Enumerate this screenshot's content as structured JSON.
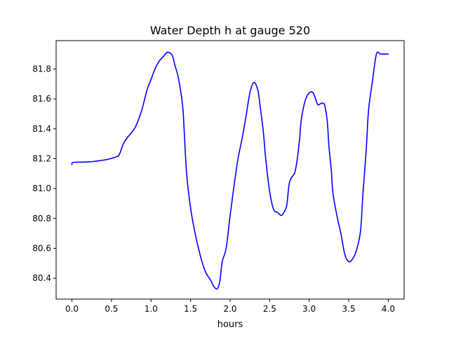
{
  "chart_data": {
    "type": "line",
    "title": "Water Depth h at gauge 520",
    "xlabel": "hours",
    "ylabel": "",
    "xlim": [
      -0.2,
      4.2
    ],
    "ylim": [
      80.26,
      81.99
    ],
    "xticks": [
      0.0,
      0.5,
      1.0,
      1.5,
      2.0,
      2.5,
      3.0,
      3.5,
      4.0
    ],
    "xtick_labels": [
      "0.0",
      "0.5",
      "1.0",
      "1.5",
      "2.0",
      "2.5",
      "3.0",
      "3.5",
      "4.0"
    ],
    "yticks": [
      80.4,
      80.6,
      80.8,
      81.0,
      81.2,
      81.4,
      81.6,
      81.8
    ],
    "ytick_labels": [
      "80.4",
      "80.6",
      "80.8",
      "81.0",
      "81.2",
      "81.4",
      "81.6",
      "81.8"
    ],
    "grid": false,
    "series": [
      {
        "color": "#0000ff",
        "x": [
          0.0,
          0.02,
          0.2,
          0.4,
          0.55,
          0.6,
          0.65,
          0.7,
          0.8,
          0.88,
          0.95,
          1.0,
          1.05,
          1.1,
          1.15,
          1.2,
          1.23,
          1.27,
          1.3,
          1.35,
          1.4,
          1.42,
          1.45,
          1.5,
          1.55,
          1.6,
          1.65,
          1.7,
          1.75,
          1.8,
          1.84,
          1.87,
          1.9,
          1.95,
          2.0,
          2.05,
          2.1,
          2.15,
          2.2,
          2.25,
          2.3,
          2.35,
          2.38,
          2.42,
          2.45,
          2.5,
          2.55,
          2.6,
          2.65,
          2.7,
          2.72,
          2.75,
          2.8,
          2.82,
          2.85,
          2.88,
          2.9,
          2.95,
          3.0,
          3.05,
          3.1,
          3.12,
          3.15,
          3.18,
          3.2,
          3.23,
          3.25,
          3.28,
          3.3,
          3.35,
          3.4,
          3.45,
          3.5,
          3.55,
          3.6,
          3.65,
          3.68,
          3.72,
          3.75,
          3.8,
          3.85,
          3.9,
          3.95,
          4.0
        ],
        "y": [
          81.16,
          81.175,
          81.178,
          81.19,
          81.21,
          81.23,
          81.3,
          81.34,
          81.41,
          81.52,
          81.66,
          81.73,
          81.8,
          81.85,
          81.88,
          81.91,
          81.91,
          81.89,
          81.83,
          81.73,
          81.55,
          81.38,
          81.1,
          80.87,
          80.72,
          80.6,
          80.5,
          80.43,
          80.39,
          80.34,
          80.33,
          80.38,
          80.51,
          80.6,
          80.82,
          81.02,
          81.2,
          81.33,
          81.48,
          81.64,
          81.71,
          81.66,
          81.55,
          81.38,
          81.2,
          80.98,
          80.86,
          80.84,
          80.82,
          80.86,
          80.9,
          81.04,
          81.09,
          81.11,
          81.2,
          81.34,
          81.46,
          81.59,
          81.64,
          81.64,
          81.57,
          81.56,
          81.57,
          81.57,
          81.55,
          81.44,
          81.28,
          81.12,
          80.97,
          80.82,
          80.7,
          80.56,
          80.51,
          80.53,
          80.59,
          80.72,
          80.97,
          81.25,
          81.52,
          81.72,
          81.9,
          81.9,
          81.9,
          81.9
        ]
      }
    ]
  }
}
